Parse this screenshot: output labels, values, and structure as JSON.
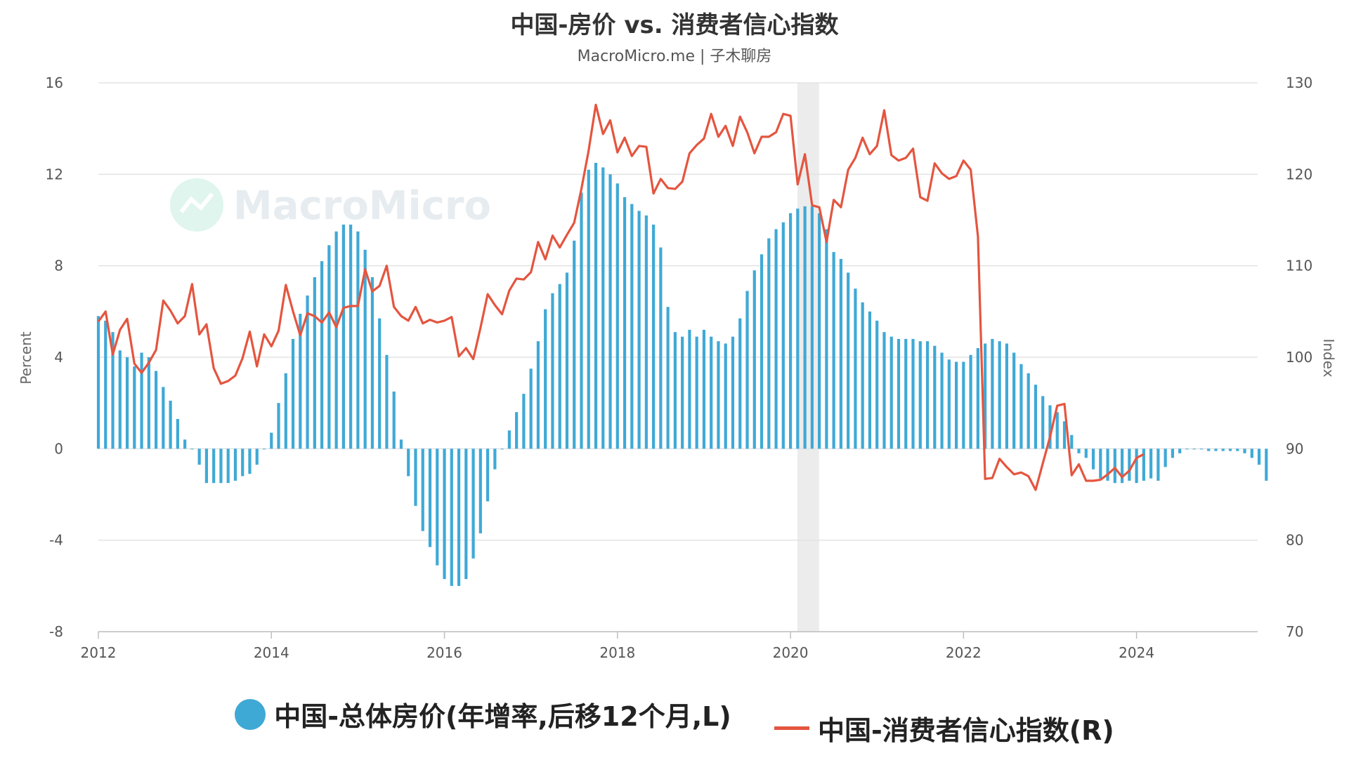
{
  "chart_data": {
    "type": "bar+line",
    "title": "中国-房价 vs. 消费者信心指数",
    "subtitle": "MacroMicro.me | 子木聊房",
    "watermark": "MacroMicro",
    "left_axis": {
      "label": "Percent",
      "ylim": [
        -8,
        16
      ],
      "ticks": [
        -8,
        -4,
        0,
        4,
        8,
        12,
        16
      ]
    },
    "right_axis": {
      "label": "Index",
      "ylim": [
        70,
        130
      ],
      "ticks": [
        70,
        80,
        90,
        100,
        110,
        120,
        130
      ]
    },
    "x_axis": {
      "ticks": [
        "2012",
        "2014",
        "2016",
        "2018",
        "2020",
        "2022",
        "2024"
      ],
      "range": [
        2012.0,
        2025.4
      ]
    },
    "grid": true,
    "legend_position": "bottom",
    "shaded_regions": [
      {
        "from": 2020.08,
        "to": 2020.33,
        "color": "#ececec"
      }
    ],
    "series": [
      {
        "name": "中国-总体房价(年增率,后移12个月,L)",
        "type": "bar",
        "axis": "left",
        "color": "#3fa9d6",
        "x_start": "2012-01",
        "interval": "month",
        "values": [
          5.8,
          5.6,
          5.1,
          4.3,
          4.0,
          3.6,
          4.2,
          4.0,
          3.4,
          2.7,
          2.1,
          1.3,
          0.4,
          0.0,
          -0.7,
          -1.5,
          -1.5,
          -1.5,
          -1.5,
          -1.4,
          -1.2,
          -1.1,
          -0.7,
          0.0,
          0.7,
          2.0,
          3.3,
          4.8,
          5.9,
          6.7,
          7.5,
          8.2,
          8.9,
          9.5,
          9.8,
          9.8,
          9.5,
          8.7,
          7.5,
          5.7,
          4.1,
          2.5,
          0.4,
          -1.2,
          -2.5,
          -3.6,
          -4.3,
          -5.1,
          -5.7,
          -6.0,
          -6.0,
          -5.7,
          -4.8,
          -3.7,
          -2.3,
          -0.9,
          0.0,
          0.8,
          1.6,
          2.4,
          3.5,
          4.7,
          6.1,
          6.8,
          7.2,
          7.7,
          9.1,
          11.2,
          12.2,
          12.5,
          12.3,
          12.0,
          11.6,
          11.0,
          10.7,
          10.4,
          10.2,
          9.8,
          8.8,
          6.2,
          5.1,
          4.9,
          5.2,
          4.9,
          5.2,
          4.9,
          4.7,
          4.6,
          4.9,
          5.7,
          6.9,
          7.8,
          8.5,
          9.2,
          9.6,
          9.9,
          10.3,
          10.5,
          10.6,
          10.6,
          10.3,
          9.6,
          8.6,
          8.3,
          7.7,
          7.0,
          6.4,
          6.0,
          5.6,
          5.1,
          4.9,
          4.8,
          4.8,
          4.8,
          4.7,
          4.7,
          4.5,
          4.2,
          3.9,
          3.8,
          3.8,
          4.1,
          4.4,
          4.6,
          4.8,
          4.7,
          4.6,
          4.2,
          3.7,
          3.3,
          2.8,
          2.3,
          1.9,
          1.6,
          1.2,
          0.6,
          -0.2,
          -0.4,
          -0.9,
          -1.3,
          -1.4,
          -1.5,
          -1.5,
          -1.4,
          -1.5,
          -1.4,
          -1.3,
          -1.4,
          -0.8,
          -0.4,
          -0.2,
          0,
          0,
          0,
          -0.1,
          -0.1,
          -0.1,
          -0.1,
          -0.1,
          -0.2,
          -0.4,
          -0.7,
          -1.4
        ]
      },
      {
        "name": "中国-消费者信心指数(R)",
        "type": "line",
        "axis": "right",
        "color": "#e4553f",
        "x_start": "2012-01",
        "interval": "month",
        "values": [
          103.9,
          105.0,
          100.3,
          103.0,
          104.2,
          99.3,
          98.3,
          99.4,
          100.8,
          106.2,
          105.1,
          103.7,
          104.5,
          108.0,
          102.5,
          103.6,
          98.8,
          97.1,
          97.4,
          98.0,
          99.9,
          102.8,
          99.0,
          102.5,
          101.2,
          102.9,
          107.9,
          105.0,
          102.4,
          104.8,
          104.5,
          103.8,
          104.9,
          103.3,
          105.4,
          105.6,
          105.6,
          109.6,
          107.2,
          107.8,
          110.0,
          105.5,
          104.5,
          104.0,
          105.5,
          103.7,
          104.1,
          103.8,
          104.0,
          104.4,
          100.1,
          101.0,
          99.8,
          103.2,
          106.9,
          105.7,
          104.7,
          107.3,
          108.6,
          108.5,
          109.3,
          112.6,
          110.7,
          113.3,
          112.0,
          113.4,
          114.7,
          118.4,
          122.6,
          127.6,
          124.4,
          125.9,
          122.4,
          124.0,
          122.0,
          123.1,
          123.0,
          117.9,
          119.5,
          118.5,
          118.4,
          119.2,
          122.3,
          123.2,
          123.9,
          126.6,
          124.1,
          125.3,
          123.1,
          126.3,
          124.6,
          122.3,
          124.1,
          124.1,
          124.6,
          126.6,
          126.4,
          118.9,
          122.2,
          116.6,
          116.4,
          112.6,
          117.2,
          116.4,
          120.5,
          121.8,
          124.0,
          122.2,
          123.1,
          127.0,
          122.1,
          121.5,
          121.8,
          122.8,
          117.5,
          117.1,
          121.2,
          120.1,
          119.5,
          119.8,
          121.5,
          120.5,
          113.2,
          86.7,
          86.8,
          88.9,
          88.0,
          87.2,
          87.4,
          87.0,
          85.5,
          88.4,
          91.3,
          94.7,
          94.9,
          87.1,
          88.3,
          86.5,
          86.5,
          86.6,
          87.2,
          87.9,
          86.9,
          87.6,
          89.0,
          89.4
        ]
      }
    ]
  },
  "legend": {
    "bar_label": "中国-总体房价(年增率,后移12个月,L)",
    "line_label": "中国-消费者信心指数(R)"
  }
}
